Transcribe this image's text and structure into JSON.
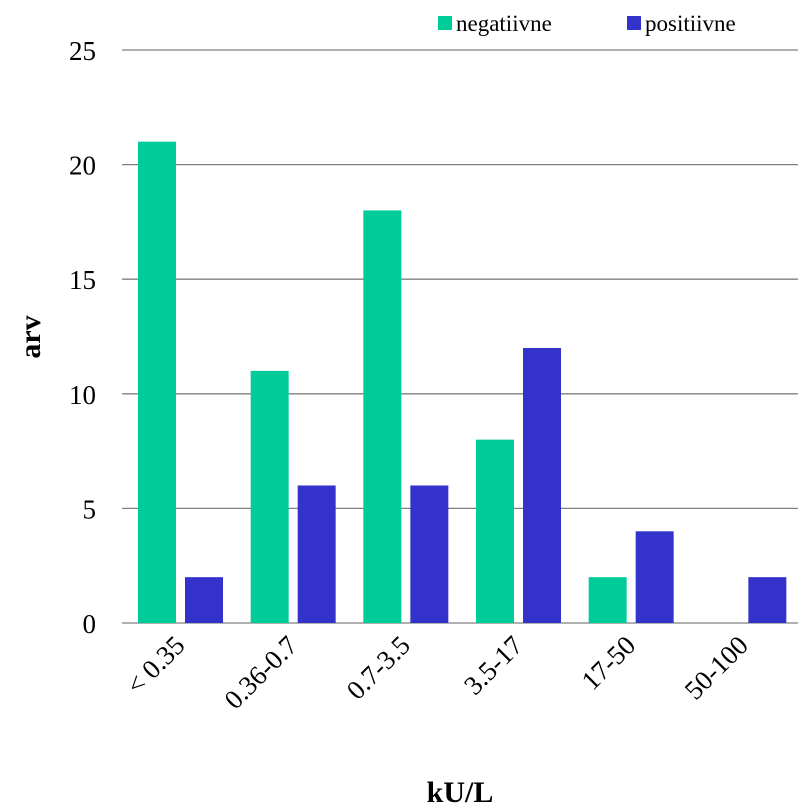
{
  "chart_data": {
    "type": "bar",
    "categories": [
      "< 0.35",
      "0.36-0.7",
      "0.7-3.5",
      "3.5-17",
      "17-50",
      "50-100"
    ],
    "series": [
      {
        "name": "negatiivne",
        "values": [
          21,
          11,
          18,
          8,
          2,
          0
        ],
        "color": "#00CC99"
      },
      {
        "name": "positiivne",
        "values": [
          2,
          6,
          6,
          12,
          4,
          2
        ],
        "color": "#3333CC"
      }
    ],
    "xlabel": "kU/L",
    "ylabel": "arv",
    "ylim": [
      0,
      25
    ],
    "yticks": [
      0,
      5,
      10,
      15,
      20,
      25
    ],
    "grid": true,
    "legend_position": "top-right",
    "gridline_color": "#808080"
  }
}
